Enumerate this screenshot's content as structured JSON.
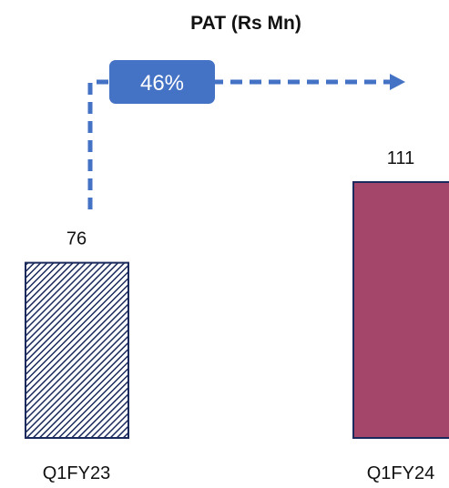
{
  "chart_data": {
    "type": "bar",
    "title": "PAT (Rs Mn)",
    "categories": [
      "Q1FY23",
      "Q1FY24"
    ],
    "values": [
      76,
      111
    ],
    "growth_label": "46%",
    "ylim": [
      0,
      111
    ],
    "grid": false,
    "legend": "none",
    "colors": {
      "bar_q1fy23_outline": "#1b2a5c",
      "bar_q1fy23_pattern": "diagonal-hatch",
      "bar_q1fy24_fill": "#a4466a",
      "bar_q1fy24_outline": "#1b2a5c",
      "growth_arrow": "#4472c4",
      "growth_badge": "#4472c4"
    }
  }
}
